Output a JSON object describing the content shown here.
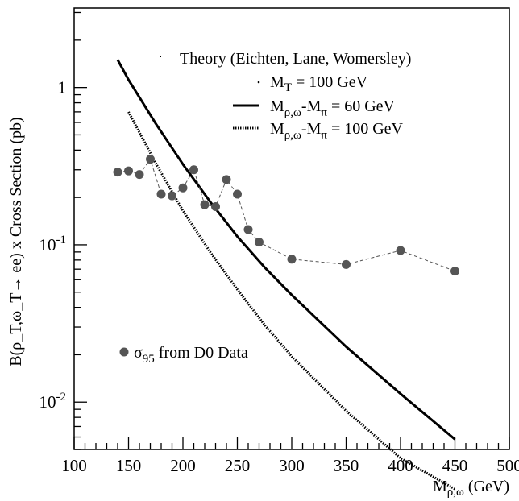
{
  "chart_data": {
    "type": "line",
    "title": "",
    "xlabel": "M",
    "xlabel_sub": "ρ,ω",
    "xlabel_unit": " (GeV)",
    "ylabel": "B(ρ_T,ω_T→ ee) x Cross Section (pb)",
    "yscale": "log",
    "xlim": [
      100,
      500
    ],
    "ylim": [
      0.005,
      3.2
    ],
    "x_tick_labels": [
      "100",
      "150",
      "200",
      "250",
      "300",
      "350",
      "400",
      "450",
      "500"
    ],
    "y_tick_labels": [
      {
        "value": 1,
        "base": "1",
        "exp": ""
      },
      {
        "value": 0.1,
        "base": "10",
        "exp": "-1"
      },
      {
        "value": 0.01,
        "base": "10",
        "exp": "-2"
      }
    ],
    "grid": false,
    "legend": {
      "header": "Theory (Eichten, Lane, Womersley)",
      "mt_main": "M",
      "mt_sub": "T",
      "mt_rest": " = 100 GeV",
      "placement": "top-right"
    },
    "series": [
      {
        "name_main": "M",
        "name_sub1": "ρ,ω",
        "name_mid": "-M",
        "name_sub2": "π",
        "name_rest": " =  60 GeV",
        "style": "solid",
        "color": "#000000",
        "x": [
          140,
          150,
          175,
          200,
          225,
          250,
          275,
          300,
          350,
          400,
          450
        ],
        "values": [
          1.5,
          1.12,
          0.59,
          0.325,
          0.188,
          0.113,
          0.072,
          0.048,
          0.0225,
          0.0113,
          0.0058
        ]
      },
      {
        "name_main": "M",
        "name_sub1": "ρ,ω",
        "name_mid": "-M",
        "name_sub2": "π",
        "name_rest": " = 100 GeV",
        "style": "dotted",
        "color": "#000000",
        "x": [
          150,
          175,
          200,
          225,
          250,
          275,
          300,
          350,
          400,
          450
        ],
        "values": [
          0.7,
          0.33,
          0.165,
          0.09,
          0.052,
          0.031,
          0.0195,
          0.0088,
          0.0044,
          0.0028
        ]
      },
      {
        "name_main": "σ",
        "name_sub1": "95",
        "name_rest": " from D0 Data",
        "style": "points-dashed",
        "color": "#555555",
        "x": [
          140,
          150,
          160,
          170,
          180,
          190,
          200,
          210,
          220,
          230,
          240,
          250,
          260,
          270,
          300,
          350,
          400,
          450
        ],
        "values": [
          0.29,
          0.295,
          0.28,
          0.35,
          0.21,
          0.205,
          0.23,
          0.3,
          0.18,
          0.175,
          0.26,
          0.21,
          0.125,
          0.104,
          0.081,
          0.075,
          0.092,
          0.068
        ]
      }
    ]
  }
}
